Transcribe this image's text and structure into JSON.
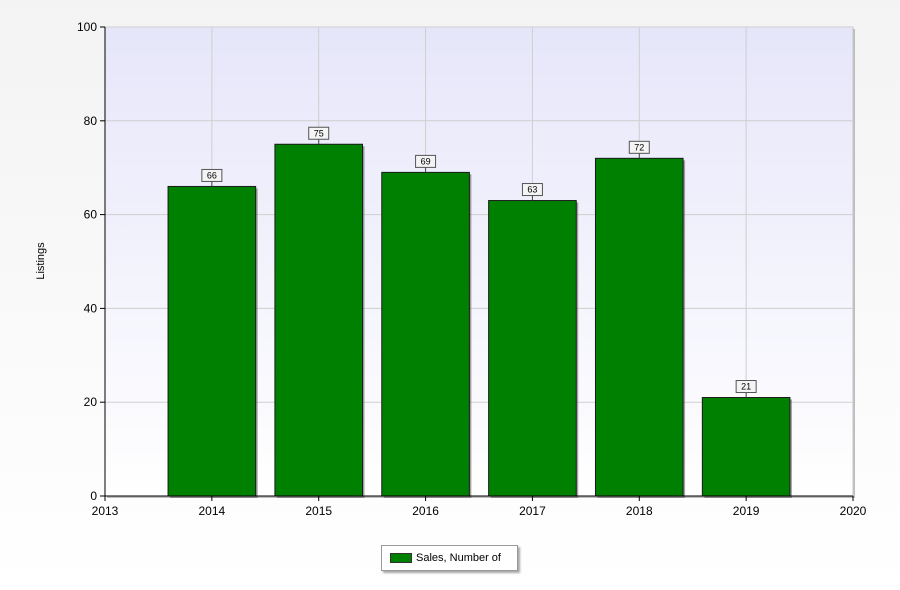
{
  "chart_data": {
    "type": "bar",
    "categories": [
      "2014",
      "2015",
      "2016",
      "2017",
      "2018",
      "2019"
    ],
    "series": [
      {
        "name": "Sales, Number of",
        "values": [
          66,
          75,
          69,
          63,
          72,
          21
        ],
        "color": "#008000"
      }
    ],
    "x_ticks": [
      "2013",
      "2014",
      "2015",
      "2016",
      "2017",
      "2018",
      "2019",
      "2020"
    ],
    "xlim": [
      2013,
      2020
    ],
    "ylim": [
      0,
      100
    ],
    "y_ticks": [
      0,
      20,
      40,
      60,
      80,
      100
    ],
    "title": "",
    "xlabel": "",
    "ylabel": "Listings",
    "grid": true,
    "legend_position": "bottom-center",
    "plot_background": "#e8e8fb"
  }
}
